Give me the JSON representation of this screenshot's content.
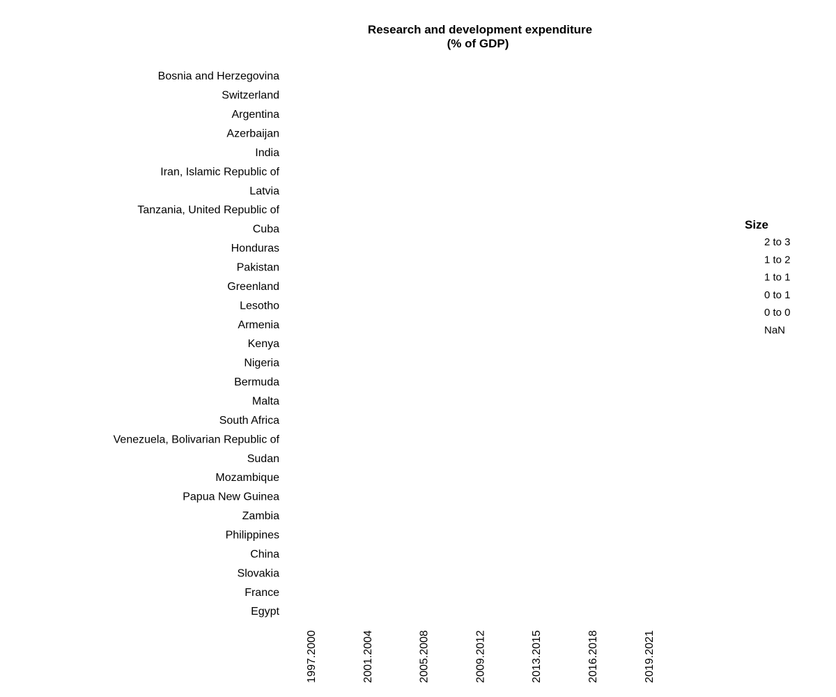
{
  "chart_data": {
    "type": "scatter",
    "title_lines": [
      "Research and development expenditure",
      "(% of GDP)"
    ],
    "xlabel": "",
    "ylabel": "",
    "x_categories": [
      "1997.2000",
      "2001.2004",
      "2005.2008",
      "2009.2012",
      "2013.2015",
      "2016.2018",
      "2019.2021"
    ],
    "y_categories": [
      "Bosnia and Herzegovina",
      "Switzerland",
      "Argentina",
      "Azerbaijan",
      "India",
      "Iran, Islamic Republic of",
      "Latvia",
      "Tanzania, United Republic of",
      "Cuba",
      "Honduras",
      "Pakistan",
      "Greenland",
      "Lesotho",
      "Armenia",
      "Kenya",
      "Nigeria",
      "Bermuda",
      "Malta",
      "South Africa",
      "Venezuela, Bolivarian Republic of",
      "Sudan",
      "Mozambique",
      "Papua New Guinea",
      "Zambia",
      "Philippines",
      "China",
      "Slovakia",
      "France",
      "Egypt"
    ],
    "points": [],
    "legend": {
      "title": "Size",
      "placement": "right",
      "items": [
        "2 to 3",
        "1 to 2",
        "1 to 1",
        "0 to 1",
        "0 to 0",
        "NaN"
      ]
    },
    "grid": false
  }
}
